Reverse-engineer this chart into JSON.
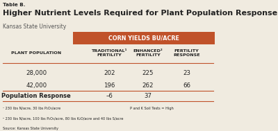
{
  "title_label": "Table B.",
  "title": "Higher Nutrient Levels Required for Plant Population Response",
  "subtitle": "Kansas State University",
  "header_bg": "#c0522a",
  "header_text": "CORN YIELDS BU/ACRE",
  "header_text_color": "#ffffff",
  "col_headers": [
    "TRADITIONAL¹\nFERTILITY",
    "ENHANCED²\nFERTILITY",
    "FERTILITY\nRESPONSE"
  ],
  "row_header": "PLANT POPULATION",
  "rows": [
    {
      "label": "28,000",
      "values": [
        "202",
        "225",
        "23"
      ],
      "bold": false
    },
    {
      "label": "42,000",
      "values": [
        "196",
        "262",
        "66"
      ],
      "bold": false
    },
    {
      "label": "Population Response",
      "values": [
        "–6",
        "37",
        ""
      ],
      "bold": true
    }
  ],
  "footnote1": "¹ 230 lbs N/acre, 30 lbs P₂O₅/acre",
  "footnote2": "² 230 lbs N/acre, 100 lbs P₂O₅/acre, 80 lbs K₂O/acre and 40 lbs S/acre",
  "footnote_right": "P and K Soil Tests = High",
  "source": "Source: Kansas State University",
  "divider_color": "#c0522a",
  "bg_color": "#f0ebe0",
  "text_color": "#222222"
}
